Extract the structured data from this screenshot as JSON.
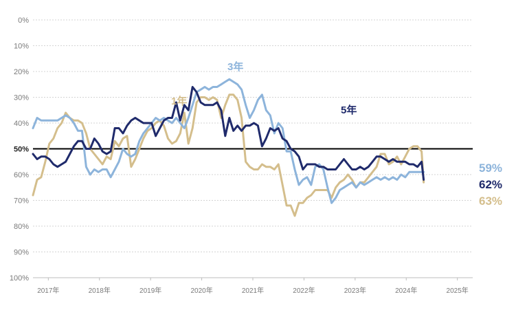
{
  "chart_data": {
    "type": "line",
    "ylim": [
      0,
      100
    ],
    "y_inverted": true,
    "y_tick_values": [
      0,
      10,
      20,
      30,
      40,
      50,
      60,
      70,
      80,
      90,
      100
    ],
    "y_tick_labels": [
      "0%",
      "10%",
      "20%",
      "30%",
      "40%",
      "50%",
      "60%",
      "70%",
      "80%",
      "90%",
      "100%"
    ],
    "x_tick_labels": [
      "2017年",
      "2018年",
      "2019年",
      "2020年",
      "2021年",
      "2022年",
      "2023年",
      "2024年",
      "2025年"
    ],
    "xlim": [
      2016.7,
      2025.3
    ],
    "reference_line": {
      "value": 50,
      "color": "#000000"
    },
    "grid": true,
    "series": [
      {
        "name": "1年",
        "color": "#D4BE8C",
        "end_label": "63%",
        "points": [
          [
            2016.7,
            68
          ],
          [
            2016.78,
            62
          ],
          [
            2016.86,
            61
          ],
          [
            2016.94,
            55
          ],
          [
            2017.02,
            48
          ],
          [
            2017.1,
            46
          ],
          [
            2017.18,
            42
          ],
          [
            2017.26,
            40
          ],
          [
            2017.34,
            36
          ],
          [
            2017.42,
            38
          ],
          [
            2017.5,
            39
          ],
          [
            2017.58,
            39
          ],
          [
            2017.66,
            40
          ],
          [
            2017.74,
            44
          ],
          [
            2017.82,
            50
          ],
          [
            2017.9,
            52
          ],
          [
            2017.98,
            54
          ],
          [
            2018.06,
            56
          ],
          [
            2018.14,
            53
          ],
          [
            2018.22,
            54
          ],
          [
            2018.3,
            47
          ],
          [
            2018.38,
            49
          ],
          [
            2018.46,
            46
          ],
          [
            2018.54,
            45
          ],
          [
            2018.62,
            57
          ],
          [
            2018.7,
            54
          ],
          [
            2018.78,
            50
          ],
          [
            2018.86,
            46
          ],
          [
            2018.94,
            43
          ],
          [
            2019.02,
            42
          ],
          [
            2019.1,
            40
          ],
          [
            2019.18,
            39
          ],
          [
            2019.26,
            41
          ],
          [
            2019.34,
            46
          ],
          [
            2019.42,
            48
          ],
          [
            2019.5,
            47
          ],
          [
            2019.58,
            44
          ],
          [
            2019.66,
            36
          ],
          [
            2019.74,
            48
          ],
          [
            2019.82,
            42
          ],
          [
            2019.9,
            32
          ],
          [
            2019.98,
            30
          ],
          [
            2020.06,
            30
          ],
          [
            2020.14,
            31
          ],
          [
            2020.22,
            30
          ],
          [
            2020.3,
            31
          ],
          [
            2020.38,
            38
          ],
          [
            2020.46,
            33
          ],
          [
            2020.54,
            29
          ],
          [
            2020.62,
            29
          ],
          [
            2020.7,
            31
          ],
          [
            2020.78,
            38
          ],
          [
            2020.86,
            55
          ],
          [
            2020.94,
            57
          ],
          [
            2021.02,
            58
          ],
          [
            2021.1,
            58
          ],
          [
            2021.18,
            56
          ],
          [
            2021.26,
            57
          ],
          [
            2021.34,
            57
          ],
          [
            2021.42,
            58
          ],
          [
            2021.5,
            56
          ],
          [
            2021.58,
            64
          ],
          [
            2021.66,
            72
          ],
          [
            2021.74,
            72
          ],
          [
            2021.82,
            76
          ],
          [
            2021.9,
            71
          ],
          [
            2021.98,
            71
          ],
          [
            2022.06,
            69
          ],
          [
            2022.14,
            68
          ],
          [
            2022.22,
            66
          ],
          [
            2022.3,
            66
          ],
          [
            2022.38,
            66
          ],
          [
            2022.46,
            66
          ],
          [
            2022.54,
            69
          ],
          [
            2022.62,
            65
          ],
          [
            2022.7,
            63
          ],
          [
            2022.78,
            62
          ],
          [
            2022.86,
            60
          ],
          [
            2022.94,
            62
          ],
          [
            2023.02,
            65
          ],
          [
            2023.1,
            63
          ],
          [
            2023.18,
            63
          ],
          [
            2023.26,
            61
          ],
          [
            2023.34,
            59
          ],
          [
            2023.42,
            57
          ],
          [
            2023.5,
            52
          ],
          [
            2023.58,
            52
          ],
          [
            2023.66,
            56
          ],
          [
            2023.74,
            55
          ],
          [
            2023.82,
            53
          ],
          [
            2023.9,
            56
          ],
          [
            2023.98,
            53
          ],
          [
            2024.06,
            50
          ],
          [
            2024.14,
            49
          ],
          [
            2024.22,
            49
          ],
          [
            2024.3,
            51
          ],
          [
            2024.34,
            63
          ]
        ]
      },
      {
        "name": "3年",
        "color": "#8DB4DB",
        "end_label": "59%",
        "points": [
          [
            2016.7,
            42
          ],
          [
            2016.78,
            38
          ],
          [
            2016.86,
            39
          ],
          [
            2016.94,
            39
          ],
          [
            2017.02,
            39
          ],
          [
            2017.1,
            39
          ],
          [
            2017.18,
            39
          ],
          [
            2017.26,
            38
          ],
          [
            2017.34,
            37
          ],
          [
            2017.42,
            38
          ],
          [
            2017.5,
            40
          ],
          [
            2017.58,
            43
          ],
          [
            2017.66,
            43
          ],
          [
            2017.74,
            57
          ],
          [
            2017.82,
            60
          ],
          [
            2017.9,
            58
          ],
          [
            2017.98,
            59
          ],
          [
            2018.06,
            58
          ],
          [
            2018.14,
            58
          ],
          [
            2018.22,
            61
          ],
          [
            2018.3,
            58
          ],
          [
            2018.38,
            55
          ],
          [
            2018.46,
            50
          ],
          [
            2018.54,
            52
          ],
          [
            2018.62,
            53
          ],
          [
            2018.7,
            52
          ],
          [
            2018.78,
            47
          ],
          [
            2018.86,
            44
          ],
          [
            2018.94,
            42
          ],
          [
            2019.02,
            40
          ],
          [
            2019.1,
            38
          ],
          [
            2019.18,
            39
          ],
          [
            2019.26,
            38
          ],
          [
            2019.34,
            39
          ],
          [
            2019.42,
            40
          ],
          [
            2019.5,
            38
          ],
          [
            2019.58,
            40
          ],
          [
            2019.66,
            42
          ],
          [
            2019.74,
            38
          ],
          [
            2019.82,
            33
          ],
          [
            2019.9,
            28
          ],
          [
            2019.98,
            27
          ],
          [
            2020.06,
            26
          ],
          [
            2020.14,
            27
          ],
          [
            2020.22,
            26
          ],
          [
            2020.3,
            26
          ],
          [
            2020.38,
            25
          ],
          [
            2020.46,
            24
          ],
          [
            2020.54,
            23
          ],
          [
            2020.62,
            24
          ],
          [
            2020.7,
            25
          ],
          [
            2020.78,
            27
          ],
          [
            2020.86,
            33
          ],
          [
            2020.94,
            38
          ],
          [
            2021.02,
            35
          ],
          [
            2021.1,
            31
          ],
          [
            2021.18,
            29
          ],
          [
            2021.26,
            35
          ],
          [
            2021.34,
            37
          ],
          [
            2021.42,
            44
          ],
          [
            2021.5,
            40
          ],
          [
            2021.58,
            42
          ],
          [
            2021.66,
            51
          ],
          [
            2021.74,
            51
          ],
          [
            2021.82,
            58
          ],
          [
            2021.9,
            64
          ],
          [
            2021.98,
            62
          ],
          [
            2022.06,
            61
          ],
          [
            2022.14,
            64
          ],
          [
            2022.22,
            57
          ],
          [
            2022.3,
            56
          ],
          [
            2022.38,
            58
          ],
          [
            2022.46,
            65
          ],
          [
            2022.54,
            71
          ],
          [
            2022.62,
            69
          ],
          [
            2022.7,
            66
          ],
          [
            2022.78,
            65
          ],
          [
            2022.86,
            64
          ],
          [
            2022.94,
            63
          ],
          [
            2023.02,
            65
          ],
          [
            2023.1,
            63
          ],
          [
            2023.18,
            64
          ],
          [
            2023.26,
            63
          ],
          [
            2023.34,
            62
          ],
          [
            2023.42,
            61
          ],
          [
            2023.5,
            62
          ],
          [
            2023.58,
            61
          ],
          [
            2023.66,
            62
          ],
          [
            2023.74,
            61
          ],
          [
            2023.82,
            62
          ],
          [
            2023.9,
            60
          ],
          [
            2023.98,
            61
          ],
          [
            2024.06,
            59
          ],
          [
            2024.14,
            59
          ],
          [
            2024.22,
            59
          ],
          [
            2024.3,
            59
          ],
          [
            2024.34,
            59
          ]
        ]
      },
      {
        "name": "5年",
        "color": "#1F2A6B",
        "end_label": "62%",
        "points": [
          [
            2016.7,
            52
          ],
          [
            2016.78,
            54
          ],
          [
            2016.86,
            53
          ],
          [
            2016.94,
            53
          ],
          [
            2017.02,
            54
          ],
          [
            2017.1,
            56
          ],
          [
            2017.18,
            57
          ],
          [
            2017.26,
            56
          ],
          [
            2017.34,
            55
          ],
          [
            2017.42,
            52
          ],
          [
            2017.5,
            49
          ],
          [
            2017.58,
            47
          ],
          [
            2017.66,
            47
          ],
          [
            2017.74,
            50
          ],
          [
            2017.82,
            50
          ],
          [
            2017.9,
            46
          ],
          [
            2017.98,
            48
          ],
          [
            2018.06,
            51
          ],
          [
            2018.14,
            52
          ],
          [
            2018.22,
            51
          ],
          [
            2018.3,
            42
          ],
          [
            2018.38,
            42
          ],
          [
            2018.46,
            44
          ],
          [
            2018.54,
            41
          ],
          [
            2018.62,
            39
          ],
          [
            2018.7,
            38
          ],
          [
            2018.78,
            39
          ],
          [
            2018.86,
            40
          ],
          [
            2018.94,
            40
          ],
          [
            2019.02,
            40
          ],
          [
            2019.1,
            45
          ],
          [
            2019.18,
            42
          ],
          [
            2019.26,
            39
          ],
          [
            2019.34,
            38
          ],
          [
            2019.42,
            38
          ],
          [
            2019.5,
            32
          ],
          [
            2019.58,
            39
          ],
          [
            2019.66,
            33
          ],
          [
            2019.74,
            35
          ],
          [
            2019.82,
            26
          ],
          [
            2019.9,
            28
          ],
          [
            2019.98,
            32
          ],
          [
            2020.06,
            33
          ],
          [
            2020.14,
            33
          ],
          [
            2020.22,
            33
          ],
          [
            2020.3,
            32
          ],
          [
            2020.38,
            35
          ],
          [
            2020.46,
            45
          ],
          [
            2020.54,
            38
          ],
          [
            2020.62,
            43
          ],
          [
            2020.7,
            41
          ],
          [
            2020.78,
            43
          ],
          [
            2020.86,
            41
          ],
          [
            2020.94,
            41
          ],
          [
            2021.02,
            40
          ],
          [
            2021.1,
            41
          ],
          [
            2021.18,
            49
          ],
          [
            2021.26,
            46
          ],
          [
            2021.34,
            42
          ],
          [
            2021.42,
            43
          ],
          [
            2021.5,
            42
          ],
          [
            2021.58,
            46
          ],
          [
            2021.66,
            47
          ],
          [
            2021.74,
            50
          ],
          [
            2021.82,
            51
          ],
          [
            2021.9,
            53
          ],
          [
            2021.98,
            58
          ],
          [
            2022.06,
            56
          ],
          [
            2022.14,
            56
          ],
          [
            2022.22,
            56
          ],
          [
            2022.3,
            57
          ],
          [
            2022.38,
            57
          ],
          [
            2022.46,
            58
          ],
          [
            2022.54,
            58
          ],
          [
            2022.62,
            58
          ],
          [
            2022.7,
            56
          ],
          [
            2022.78,
            54
          ],
          [
            2022.86,
            56
          ],
          [
            2022.94,
            58
          ],
          [
            2023.02,
            58
          ],
          [
            2023.1,
            57
          ],
          [
            2023.18,
            58
          ],
          [
            2023.26,
            57
          ],
          [
            2023.34,
            55
          ],
          [
            2023.42,
            53
          ],
          [
            2023.5,
            53
          ],
          [
            2023.58,
            54
          ],
          [
            2023.66,
            55
          ],
          [
            2023.74,
            54
          ],
          [
            2023.82,
            55
          ],
          [
            2023.9,
            55
          ],
          [
            2023.98,
            55
          ],
          [
            2024.06,
            56
          ],
          [
            2024.14,
            56
          ],
          [
            2024.22,
            57
          ],
          [
            2024.3,
            55
          ],
          [
            2024.34,
            62
          ]
        ]
      }
    ]
  }
}
